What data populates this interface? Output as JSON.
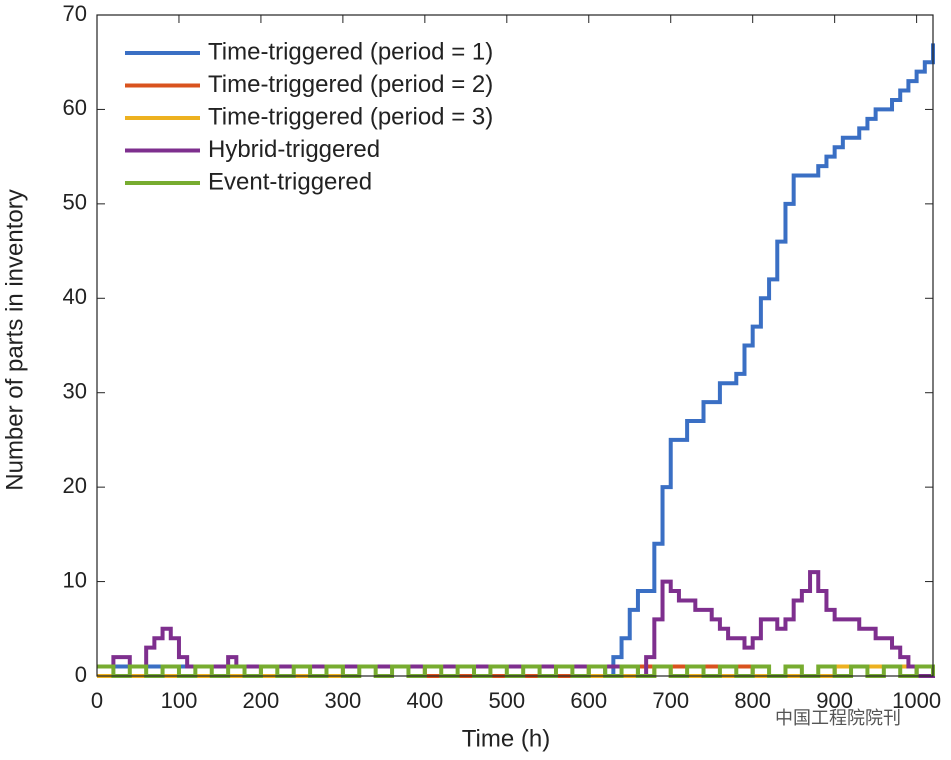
{
  "chart_data": {
    "type": "line",
    "drawstyle": "steps-post",
    "xlabel": "Time (h)",
    "ylabel": "Number of parts in inventory",
    "watermark": "中国工程院院刊",
    "xlim": [
      0,
      1020
    ],
    "ylim": [
      0,
      70
    ],
    "xticks": [
      0,
      100,
      200,
      300,
      400,
      500,
      600,
      700,
      800,
      900,
      1000
    ],
    "yticks": [
      0,
      10,
      20,
      30,
      40,
      50,
      60,
      70
    ],
    "legend": "upper left",
    "series": [
      {
        "name": "Time-triggered (period = 1)",
        "color": "#3a6fc4",
        "x": [
          0,
          100,
          200,
          300,
          400,
          500,
          600,
          620,
          630,
          640,
          650,
          660,
          670,
          680,
          690,
          700,
          720,
          740,
          760,
          780,
          790,
          800,
          810,
          820,
          830,
          840,
          850,
          860,
          870,
          880,
          890,
          900,
          910,
          920,
          930,
          940,
          950,
          960,
          970,
          980,
          990,
          1000,
          1010,
          1020
        ],
        "values": [
          1,
          1,
          1,
          1,
          1,
          1,
          1,
          0,
          2,
          4,
          7,
          9,
          9,
          14,
          20,
          25,
          27,
          29,
          31,
          32,
          35,
          37,
          40,
          42,
          46,
          50,
          53,
          53,
          53,
          54,
          55,
          56,
          57,
          57,
          58,
          59,
          60,
          60,
          61,
          62,
          63,
          64,
          65,
          67
        ]
      },
      {
        "name": "Time-triggered (period = 2)",
        "color": "#d9531e",
        "x": [
          0,
          200,
          400,
          600,
          800,
          900,
          1000,
          1020
        ],
        "values": [
          0,
          1,
          0,
          1,
          0,
          1,
          0,
          0
        ]
      },
      {
        "name": "Time-triggered (period = 3)",
        "color": "#edb120",
        "x": [
          0,
          300,
          600,
          680,
          700,
          900,
          1020
        ],
        "values": [
          0,
          1,
          0,
          1,
          0,
          1,
          0
        ]
      },
      {
        "name": "Hybrid-triggered",
        "color": "#7e2f8e",
        "x": [
          0,
          20,
          40,
          60,
          70,
          80,
          90,
          100,
          110,
          160,
          170,
          300,
          500,
          660,
          670,
          680,
          690,
          700,
          710,
          720,
          730,
          740,
          750,
          760,
          770,
          780,
          790,
          800,
          810,
          820,
          830,
          840,
          850,
          860,
          870,
          880,
          890,
          900,
          910,
          920,
          930,
          940,
          950,
          960,
          970,
          980,
          990,
          1000,
          1010,
          1020
        ],
        "values": [
          1,
          2,
          1,
          3,
          4,
          5,
          4,
          2,
          1,
          2,
          1,
          1,
          1,
          0,
          2,
          6,
          10,
          9,
          8,
          8,
          7,
          7,
          6,
          5,
          4,
          4,
          3,
          4,
          6,
          6,
          5,
          6,
          8,
          9,
          11,
          9,
          7,
          6,
          6,
          6,
          5,
          5,
          4,
          4,
          3,
          2,
          1,
          0,
          0,
          1
        ]
      },
      {
        "name": "Event-triggered",
        "color": "#77ac30",
        "x": [
          0,
          20,
          40,
          60,
          80,
          100,
          120,
          140,
          160,
          180,
          200,
          220,
          240,
          260,
          280,
          300,
          320,
          340,
          360,
          380,
          400,
          420,
          440,
          460,
          480,
          500,
          520,
          540,
          560,
          580,
          600,
          620,
          640,
          660,
          680,
          700,
          720,
          740,
          760,
          780,
          800,
          820,
          840,
          860,
          880,
          900,
          920,
          940,
          960,
          980,
          1000,
          1020
        ],
        "values": [
          1,
          0,
          1,
          0,
          1,
          0,
          1,
          0,
          1,
          0,
          1,
          0,
          1,
          0,
          1,
          0,
          1,
          0,
          1,
          0,
          1,
          0,
          1,
          0,
          1,
          0,
          1,
          0,
          1,
          0,
          1,
          0,
          1,
          0,
          1,
          0,
          1,
          0,
          1,
          0,
          1,
          0,
          1,
          0,
          1,
          0,
          1,
          0,
          1,
          0,
          1,
          0
        ]
      }
    ]
  }
}
